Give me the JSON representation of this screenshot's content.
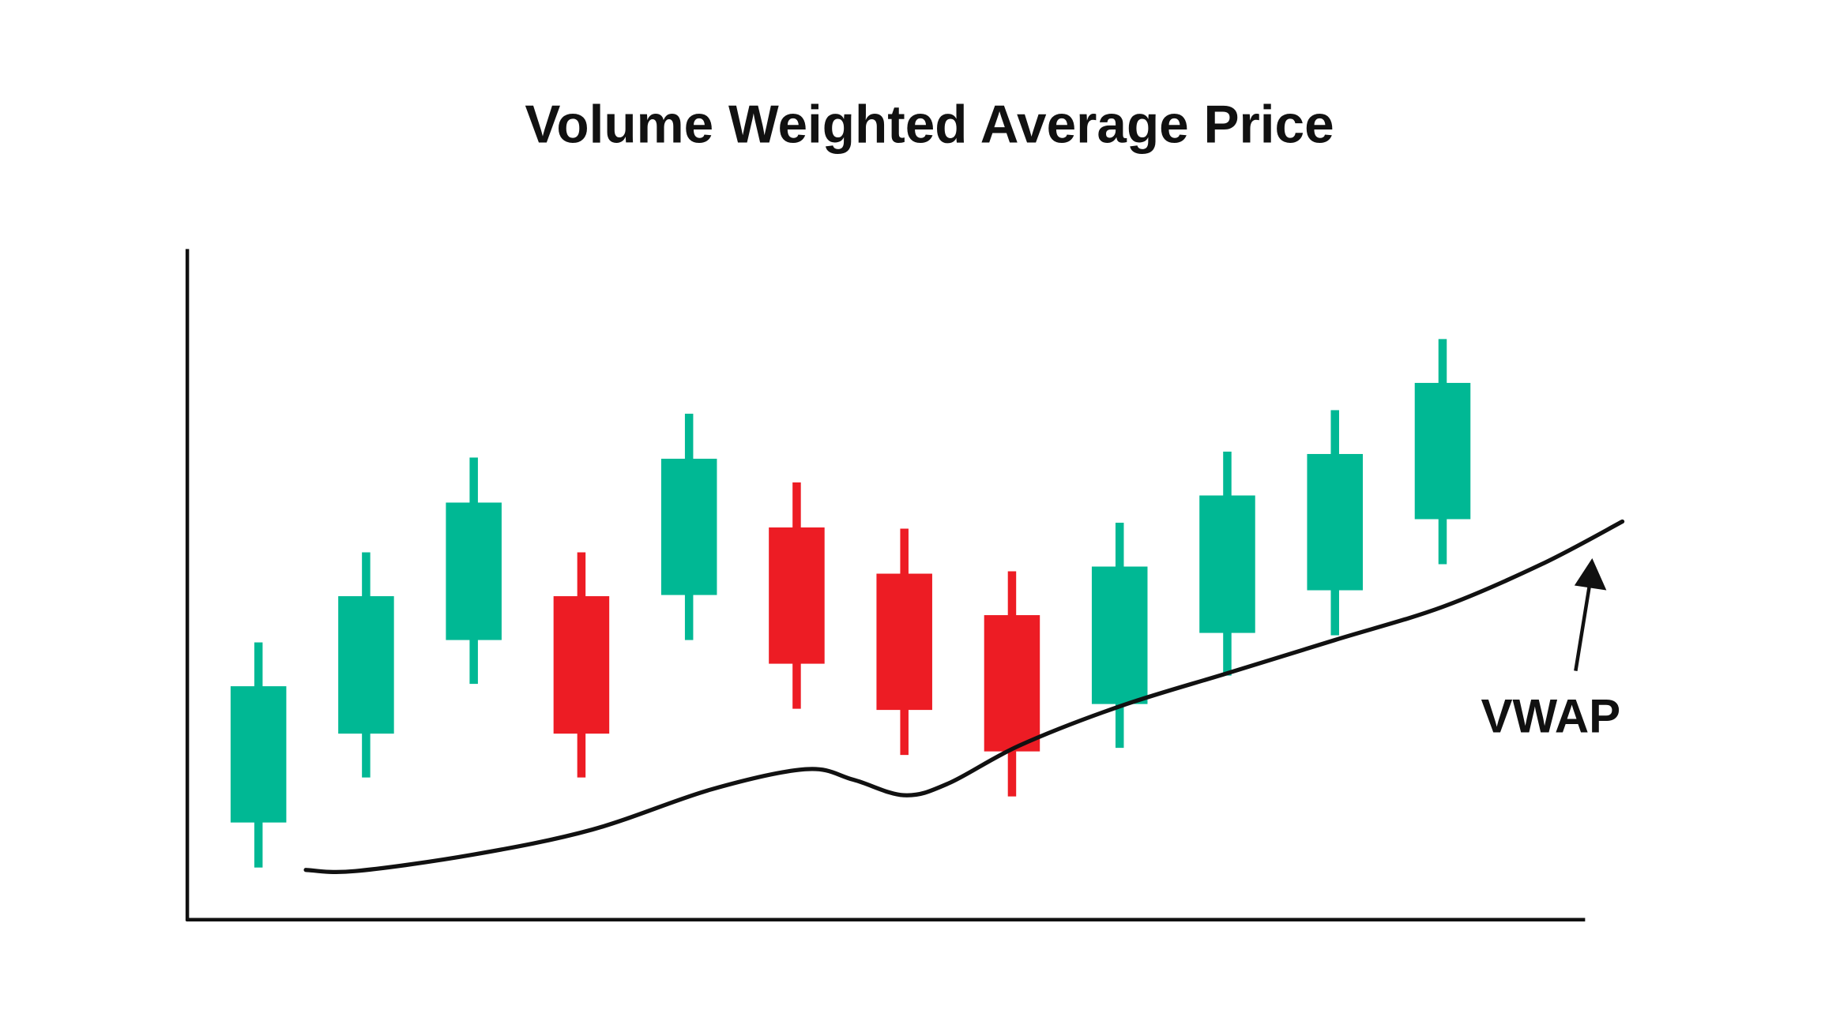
{
  "chart_data": {
    "type": "candlestick",
    "title": "Volume Weighted Average Price",
    "xlabel": "",
    "ylabel": "",
    "ylim": [
      0,
      566
    ],
    "xlim": [
      -0.66,
      12.32
    ],
    "grid": false,
    "colors": {
      "up": "#00b894",
      "down": "#ed1c24",
      "line": "#111111",
      "axis": "#111111"
    },
    "candles": [
      {
        "open": 82,
        "close": 197,
        "high": 234,
        "low": 44
      },
      {
        "open": 157,
        "close": 273,
        "high": 310,
        "low": 120
      },
      {
        "open": 236,
        "close": 352,
        "high": 390,
        "low": 199
      },
      {
        "open": 273,
        "close": 157,
        "high": 310,
        "low": 120
      },
      {
        "open": 274,
        "close": 389,
        "high": 427,
        "low": 236
      },
      {
        "open": 331,
        "close": 216,
        "high": 369,
        "low": 178
      },
      {
        "open": 292,
        "close": 177,
        "high": 330,
        "low": 139
      },
      {
        "open": 257,
        "close": 142,
        "high": 294,
        "low": 104
      },
      {
        "open": 182,
        "close": 298,
        "high": 335,
        "low": 145
      },
      {
        "open": 242,
        "close": 358,
        "high": 395,
        "low": 206
      },
      {
        "open": 278,
        "close": 393,
        "high": 430,
        "low": 240
      },
      {
        "open": 338,
        "close": 453,
        "high": 490,
        "low": 300
      }
    ],
    "series": [
      {
        "name": "VWAP",
        "x": [
          0.44,
          0.9,
          2.0,
          3.1,
          4.21,
          5.09,
          5.53,
          6.0,
          6.41,
          7.07,
          8.0,
          9.0,
          10.0,
          11.0,
          11.92,
          12.67
        ],
        "y": [
          42,
          41,
          55,
          76,
          110,
          127,
          118,
          105,
          115,
          147,
          180,
          208,
          236,
          264,
          300,
          336
        ]
      }
    ],
    "annotations": [
      {
        "text": "VWAP",
        "points_to_series": "VWAP"
      }
    ]
  }
}
